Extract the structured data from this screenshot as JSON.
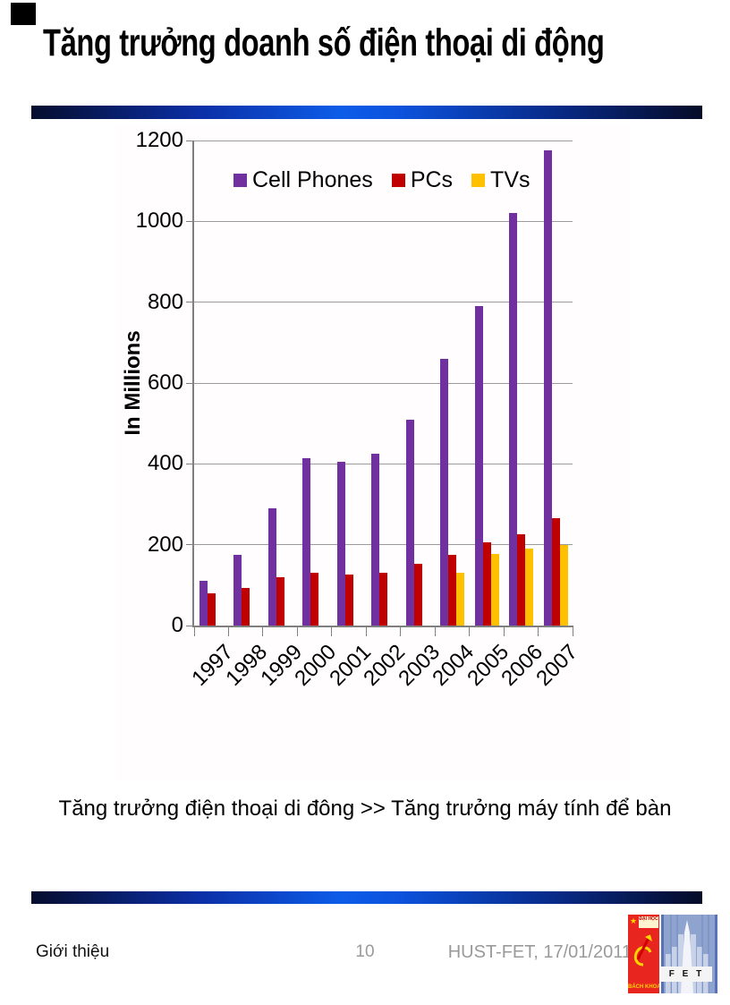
{
  "slide": {
    "title": "Tăng trưởng doanh số điện thoại di động",
    "caption": "Tăng trưởng điện thoại di đông >> Tăng trưởng máy tính để bàn",
    "footer": {
      "left": "Giới thiệu",
      "page": "10",
      "right": "HUST-FET, 17/01/2011"
    },
    "logo": {
      "top_text": "ĐẠI HỌC",
      "banner_text": "BÁCH KHOA",
      "fet_text": "F E T"
    },
    "colors": {
      "divider_blue_dark": "#060d2e",
      "divider_blue_bright": "#0d5ce8",
      "footer_gray": "#9a9a9a",
      "logo_red": "#e8251f",
      "logo_yellow": "#ffd400",
      "logo_blue": "#5872b5"
    }
  },
  "chart_data": {
    "type": "bar",
    "title": "",
    "ylabel": "In Millions",
    "xlabel": "",
    "ylim": [
      0,
      1200
    ],
    "yticks": [
      0,
      200,
      400,
      600,
      800,
      1000,
      1200
    ],
    "grid": true,
    "legend_position": "top-inside",
    "categories": [
      "1997",
      "1998",
      "1999",
      "2000",
      "2001",
      "2002",
      "2003",
      "2004",
      "2005",
      "2006",
      "2007"
    ],
    "series": [
      {
        "name": "Cell Phones",
        "color": "#7030A0",
        "values": [
          110,
          175,
          290,
          415,
          405,
          425,
          510,
          660,
          790,
          1020,
          1175
        ]
      },
      {
        "name": "PCs",
        "color": "#C00000",
        "values": [
          80,
          93,
          120,
          130,
          126,
          131,
          152,
          175,
          205,
          225,
          265
        ]
      },
      {
        "name": "TVs",
        "color": "#FFC000",
        "values": [
          null,
          null,
          null,
          null,
          null,
          null,
          null,
          130,
          178,
          190,
          200
        ]
      }
    ]
  }
}
